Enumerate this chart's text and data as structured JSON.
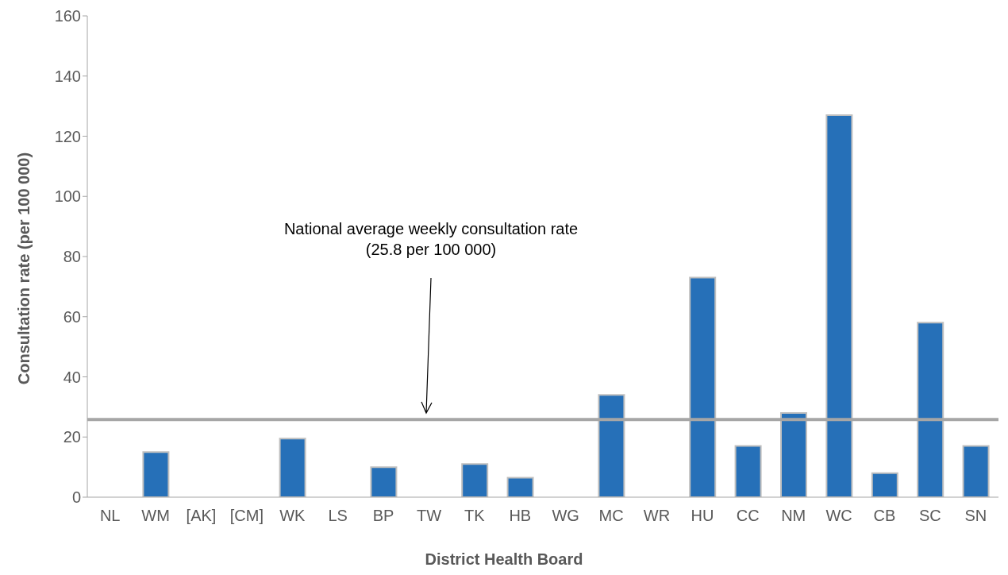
{
  "chart_data": {
    "type": "bar",
    "xlabel": "District Health Board",
    "ylabel": "Consultation rate (per 100 000)",
    "categories": [
      "NL",
      "WM",
      "[AK]",
      "[CM]",
      "WK",
      "LS",
      "BP",
      "TW",
      "TK",
      "HB",
      "WG",
      "MC",
      "WR",
      "HU",
      "CC",
      "NM",
      "WC",
      "CB",
      "SC",
      "SN"
    ],
    "values": [
      0,
      15,
      0,
      0,
      19.5,
      0,
      10,
      0,
      11,
      6.5,
      0,
      34,
      0,
      73,
      17,
      28,
      127,
      8,
      58,
      17
    ],
    "color": "#2670b8",
    "ylim": [
      0,
      160
    ],
    "yticks": [
      0,
      20,
      40,
      60,
      80,
      100,
      120,
      140,
      160
    ],
    "grid": false,
    "legend": false,
    "ref_lines": [
      {
        "axis": "y",
        "value": 25.8,
        "color": "#a6a6a6"
      }
    ],
    "annotations": [
      "National average weekly consultation rate\n(25.8 per 100 000)"
    ]
  }
}
